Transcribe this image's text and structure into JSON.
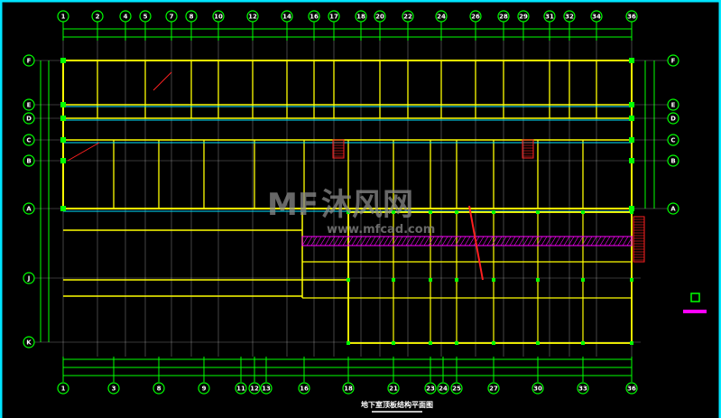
{
  "drawing": {
    "title": "地下室顶板结构平面图",
    "top_axes": [
      "1",
      "2",
      "4",
      "5",
      "7",
      "8",
      "10",
      "12",
      "14",
      "16",
      "17",
      "18",
      "20",
      "22",
      "24",
      "26",
      "28",
      "29",
      "31",
      "32",
      "34",
      "36"
    ],
    "bottom_axes": [
      "1",
      "3",
      "8",
      "9",
      "11",
      "12",
      "13",
      "16",
      "18",
      "21",
      "23",
      "24",
      "25",
      "27",
      "30",
      "33",
      "36"
    ],
    "left_axes": [
      "F",
      "E",
      "D",
      "C",
      "B",
      "A",
      "J",
      "K"
    ],
    "right_axes": [
      "F",
      "E",
      "D",
      "C",
      "B",
      "A"
    ]
  },
  "watermark": {
    "logo": "MF",
    "name": "沐风网",
    "url": "www.mfcad.com"
  },
  "colors": {
    "background": "#000000",
    "frame": "#00e5ff",
    "axis": "#00ff00",
    "wall": "#ffff00",
    "column": "#00ff00",
    "stair": "#ff2020",
    "hatch": "#ff00ff",
    "beam": "#00e5ff",
    "grid": "#c0c0c0"
  }
}
